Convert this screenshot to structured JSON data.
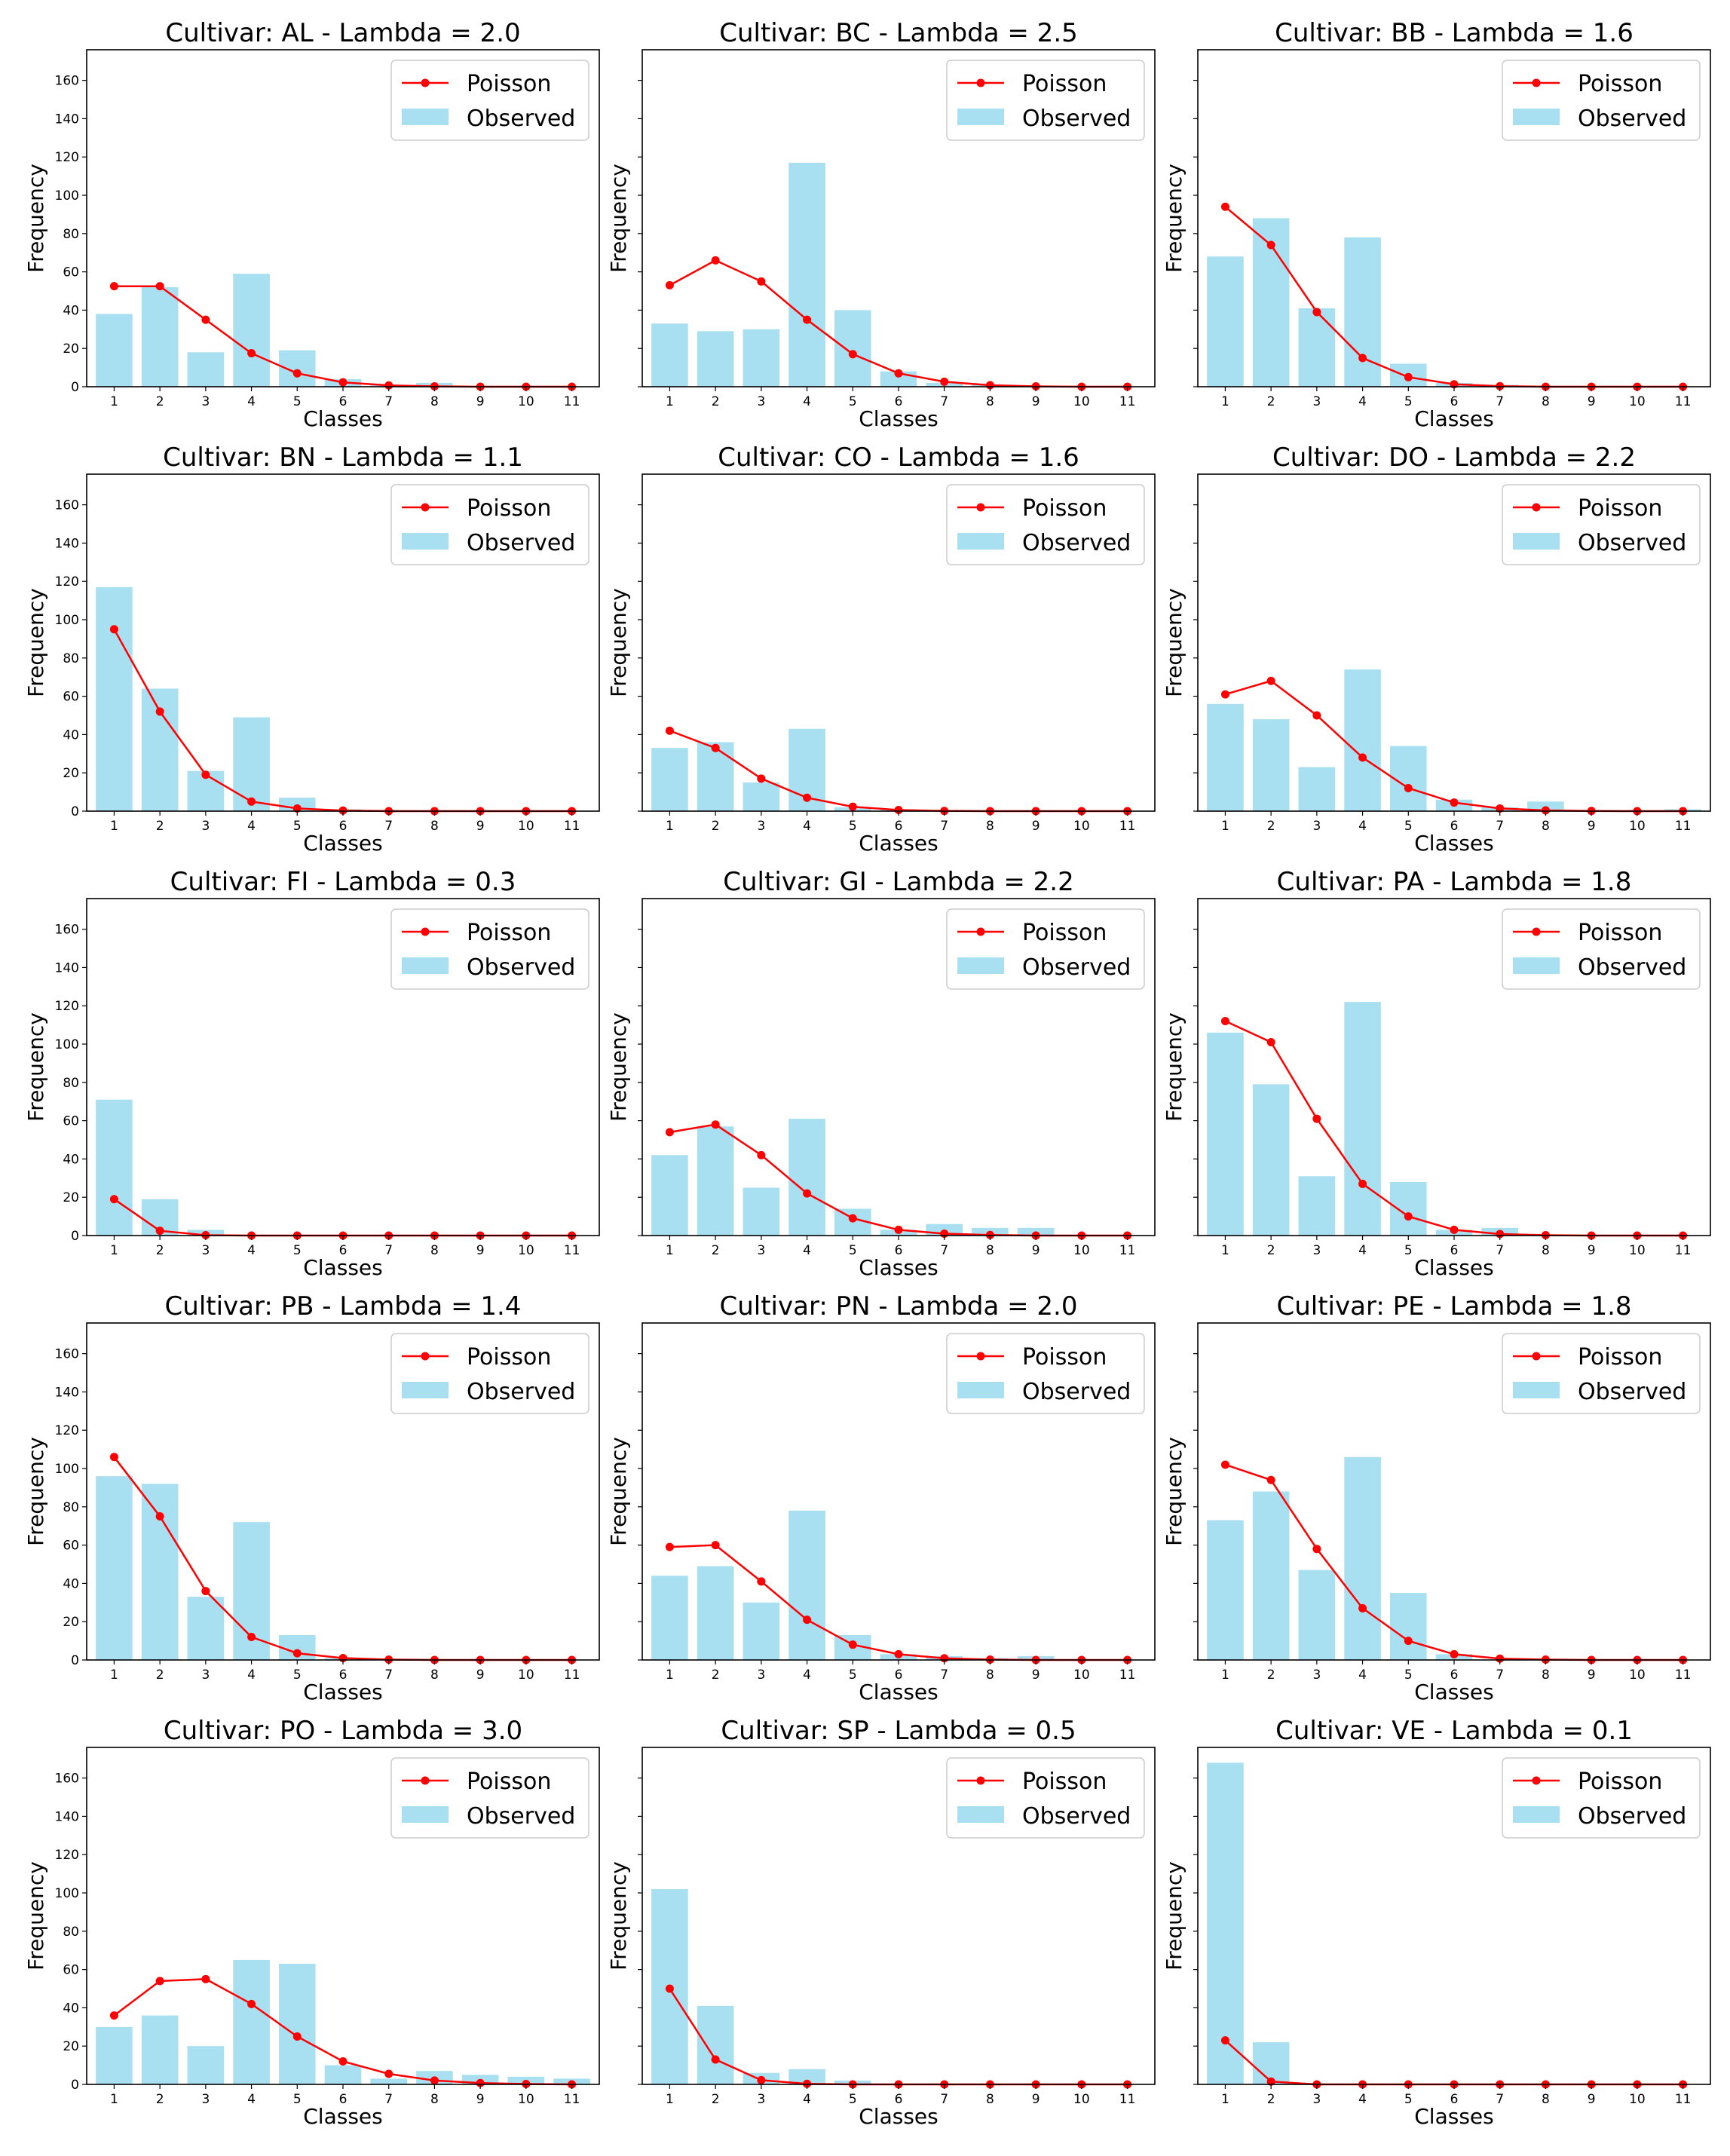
{
  "legend": {
    "line_label": "Poisson",
    "bar_label": "Observed"
  },
  "colors": {
    "observed": "#a8dff1",
    "poisson": "#ff0000"
  },
  "x_axis_label": "Classes",
  "y_axis_label": "Frequency",
  "chart_data": [
    {
      "type": "bar",
      "title": "Cultivar: AL  -  Lambda = 2.0",
      "xlabel": "Classes",
      "ylabel": "Frequency",
      "categories": [
        "1",
        "2",
        "3",
        "4",
        "5",
        "6",
        "7",
        "8",
        "9",
        "10",
        "11"
      ],
      "ylim": [
        0,
        176
      ],
      "yticks": [
        0,
        20,
        40,
        60,
        80,
        100,
        120,
        140,
        160
      ],
      "grid": false,
      "legend_position": "top-right",
      "series": [
        {
          "name": "Observed",
          "type": "bar",
          "values": [
            38,
            52,
            18,
            59,
            19,
            4,
            1,
            2,
            0,
            0,
            0
          ]
        },
        {
          "name": "Poisson",
          "type": "line",
          "values": [
            52.5,
            52.5,
            35,
            17.5,
            7,
            2.3,
            0.7,
            0.2,
            0,
            0,
            0
          ]
        }
      ]
    },
    {
      "type": "bar",
      "title": "Cultivar: BC  -  Lambda = 2.5",
      "xlabel": "Classes",
      "ylabel": "Frequency",
      "categories": [
        "1",
        "2",
        "3",
        "4",
        "5",
        "6",
        "7",
        "8",
        "9",
        "10",
        "11"
      ],
      "ylim": [
        0,
        176
      ],
      "yticks": [
        0,
        20,
        40,
        60,
        80,
        100,
        120,
        140,
        160
      ],
      "grid": false,
      "legend_position": "top-right",
      "series": [
        {
          "name": "Observed",
          "type": "bar",
          "values": [
            33,
            29,
            30,
            117,
            40,
            8,
            2,
            1,
            0,
            0,
            0
          ]
        },
        {
          "name": "Poisson",
          "type": "line",
          "values": [
            53,
            66,
            55,
            35,
            17,
            7,
            2.6,
            0.8,
            0.2,
            0,
            0
          ]
        }
      ]
    },
    {
      "type": "bar",
      "title": "Cultivar: BB  -  Lambda = 1.6",
      "xlabel": "Classes",
      "ylabel": "Frequency",
      "categories": [
        "1",
        "2",
        "3",
        "4",
        "5",
        "6",
        "7",
        "8",
        "9",
        "10",
        "11"
      ],
      "ylim": [
        0,
        176
      ],
      "yticks": [
        0,
        20,
        40,
        60,
        80,
        100,
        120,
        140,
        160
      ],
      "grid": false,
      "legend_position": "top-right",
      "series": [
        {
          "name": "Observed",
          "type": "bar",
          "values": [
            68,
            88,
            41,
            78,
            12,
            2,
            1,
            0,
            0,
            0,
            0
          ]
        },
        {
          "name": "Poisson",
          "type": "line",
          "values": [
            94,
            74,
            39,
            15,
            5,
            1.3,
            0.3,
            0,
            0,
            0,
            0
          ]
        }
      ]
    },
    {
      "type": "bar",
      "title": "Cultivar: BN  -  Lambda = 1.1",
      "xlabel": "Classes",
      "ylabel": "Frequency",
      "categories": [
        "1",
        "2",
        "3",
        "4",
        "5",
        "6",
        "7",
        "8",
        "9",
        "10",
        "11"
      ],
      "ylim": [
        0,
        176
      ],
      "yticks": [
        0,
        20,
        40,
        60,
        80,
        100,
        120,
        140,
        160
      ],
      "grid": false,
      "legend_position": "top-right",
      "series": [
        {
          "name": "Observed",
          "type": "bar",
          "values": [
            117,
            64,
            21,
            49,
            7,
            1,
            0,
            0,
            0,
            0,
            0
          ]
        },
        {
          "name": "Poisson",
          "type": "line",
          "values": [
            95,
            52,
            19,
            5,
            1.4,
            0.3,
            0,
            0,
            0,
            0,
            0
          ]
        }
      ]
    },
    {
      "type": "bar",
      "title": "Cultivar: CO  -  Lambda = 1.6",
      "xlabel": "Classes",
      "ylabel": "Frequency",
      "categories": [
        "1",
        "2",
        "3",
        "4",
        "5",
        "6",
        "7",
        "8",
        "9",
        "10",
        "11"
      ],
      "ylim": [
        0,
        176
      ],
      "yticks": [
        0,
        20,
        40,
        60,
        80,
        100,
        120,
        140,
        160
      ],
      "grid": false,
      "legend_position": "top-right",
      "series": [
        {
          "name": "Observed",
          "type": "bar",
          "values": [
            33,
            36,
            15,
            43,
            2,
            1,
            0,
            0,
            0,
            0,
            0
          ]
        },
        {
          "name": "Poisson",
          "type": "line",
          "values": [
            42,
            33,
            17,
            7,
            2.3,
            0.6,
            0.1,
            0,
            0,
            0,
            0
          ]
        }
      ]
    },
    {
      "type": "bar",
      "title": "Cultivar: DO  -  Lambda = 2.2",
      "xlabel": "Classes",
      "ylabel": "Frequency",
      "categories": [
        "1",
        "2",
        "3",
        "4",
        "5",
        "6",
        "7",
        "8",
        "9",
        "10",
        "11"
      ],
      "ylim": [
        0,
        176
      ],
      "yticks": [
        0,
        20,
        40,
        60,
        80,
        100,
        120,
        140,
        160
      ],
      "grid": false,
      "legend_position": "top-right",
      "series": [
        {
          "name": "Observed",
          "type": "bar",
          "values": [
            56,
            48,
            23,
            74,
            34,
            6,
            2,
            5,
            0,
            0,
            1
          ]
        },
        {
          "name": "Poisson",
          "type": "line",
          "values": [
            61,
            68,
            50,
            28,
            12,
            4.5,
            1.4,
            0.4,
            0.1,
            0,
            0
          ]
        }
      ]
    },
    {
      "type": "bar",
      "title": "Cultivar: FI  -  Lambda = 0.3",
      "xlabel": "Classes",
      "ylabel": "Frequency",
      "categories": [
        "1",
        "2",
        "3",
        "4",
        "5",
        "6",
        "7",
        "8",
        "9",
        "10",
        "11"
      ],
      "ylim": [
        0,
        176
      ],
      "yticks": [
        0,
        20,
        40,
        60,
        80,
        100,
        120,
        140,
        160
      ],
      "grid": false,
      "legend_position": "top-right",
      "series": [
        {
          "name": "Observed",
          "type": "bar",
          "values": [
            71,
            19,
            3,
            0,
            0,
            0,
            0,
            0,
            0,
            0,
            0
          ]
        },
        {
          "name": "Poisson",
          "type": "line",
          "values": [
            19,
            2.5,
            0.2,
            0,
            0,
            0,
            0,
            0,
            0,
            0,
            0
          ]
        }
      ]
    },
    {
      "type": "bar",
      "title": "Cultivar: GI  -  Lambda = 2.2",
      "xlabel": "Classes",
      "ylabel": "Frequency",
      "categories": [
        "1",
        "2",
        "3",
        "4",
        "5",
        "6",
        "7",
        "8",
        "9",
        "10",
        "11"
      ],
      "ylim": [
        0,
        176
      ],
      "yticks": [
        0,
        20,
        40,
        60,
        80,
        100,
        120,
        140,
        160
      ],
      "grid": false,
      "legend_position": "top-right",
      "series": [
        {
          "name": "Observed",
          "type": "bar",
          "values": [
            42,
            57,
            25,
            61,
            14,
            3,
            6,
            4,
            4,
            0,
            0
          ]
        },
        {
          "name": "Poisson",
          "type": "line",
          "values": [
            54,
            58,
            42,
            22,
            9,
            3,
            1,
            0.3,
            0,
            0,
            0
          ]
        }
      ]
    },
    {
      "type": "bar",
      "title": "Cultivar: PA  -  Lambda = 1.8",
      "xlabel": "Classes",
      "ylabel": "Frequency",
      "categories": [
        "1",
        "2",
        "3",
        "4",
        "5",
        "6",
        "7",
        "8",
        "9",
        "10",
        "11"
      ],
      "ylim": [
        0,
        176
      ],
      "yticks": [
        0,
        20,
        40,
        60,
        80,
        100,
        120,
        140,
        160
      ],
      "grid": false,
      "legend_position": "top-right",
      "series": [
        {
          "name": "Observed",
          "type": "bar",
          "values": [
            106,
            79,
            31,
            122,
            28,
            3,
            4,
            0,
            0,
            0,
            0
          ]
        },
        {
          "name": "Poisson",
          "type": "line",
          "values": [
            112,
            101,
            61,
            27,
            10,
            3,
            0.8,
            0.2,
            0,
            0,
            0
          ]
        }
      ]
    },
    {
      "type": "bar",
      "title": "Cultivar: PB  -  Lambda = 1.4",
      "xlabel": "Classes",
      "ylabel": "Frequency",
      "categories": [
        "1",
        "2",
        "3",
        "4",
        "5",
        "6",
        "7",
        "8",
        "9",
        "10",
        "11"
      ],
      "ylim": [
        0,
        176
      ],
      "yticks": [
        0,
        20,
        40,
        60,
        80,
        100,
        120,
        140,
        160
      ],
      "grid": false,
      "legend_position": "top-right",
      "series": [
        {
          "name": "Observed",
          "type": "bar",
          "values": [
            96,
            92,
            33,
            72,
            13,
            1,
            0,
            0,
            0,
            0,
            0
          ]
        },
        {
          "name": "Poisson",
          "type": "line",
          "values": [
            106,
            75,
            36,
            12,
            3.5,
            1,
            0.2,
            0,
            0,
            0,
            0
          ]
        }
      ]
    },
    {
      "type": "bar",
      "title": "Cultivar: PN  -  Lambda = 2.0",
      "xlabel": "Classes",
      "ylabel": "Frequency",
      "categories": [
        "1",
        "2",
        "3",
        "4",
        "5",
        "6",
        "7",
        "8",
        "9",
        "10",
        "11"
      ],
      "ylim": [
        0,
        176
      ],
      "yticks": [
        0,
        20,
        40,
        60,
        80,
        100,
        120,
        140,
        160
      ],
      "grid": false,
      "legend_position": "top-right",
      "series": [
        {
          "name": "Observed",
          "type": "bar",
          "values": [
            44,
            49,
            30,
            78,
            13,
            3,
            2,
            1,
            2,
            0,
            0
          ]
        },
        {
          "name": "Poisson",
          "type": "line",
          "values": [
            59,
            60,
            41,
            21,
            8,
            3,
            0.9,
            0.2,
            0,
            0,
            0
          ]
        }
      ]
    },
    {
      "type": "bar",
      "title": "Cultivar: PE  -  Lambda = 1.8",
      "xlabel": "Classes",
      "ylabel": "Frequency",
      "categories": [
        "1",
        "2",
        "3",
        "4",
        "5",
        "6",
        "7",
        "8",
        "9",
        "10",
        "11"
      ],
      "ylim": [
        0,
        176
      ],
      "yticks": [
        0,
        20,
        40,
        60,
        80,
        100,
        120,
        140,
        160
      ],
      "grid": false,
      "legend_position": "top-right",
      "series": [
        {
          "name": "Observed",
          "type": "bar",
          "values": [
            73,
            88,
            47,
            106,
            35,
            3,
            0,
            0,
            0,
            0,
            0
          ]
        },
        {
          "name": "Poisson",
          "type": "line",
          "values": [
            102,
            94,
            58,
            27,
            10,
            3,
            0.7,
            0.2,
            0,
            0,
            0
          ]
        }
      ]
    },
    {
      "type": "bar",
      "title": "Cultivar: PO  -  Lambda = 3.0",
      "xlabel": "Classes",
      "ylabel": "Frequency",
      "categories": [
        "1",
        "2",
        "3",
        "4",
        "5",
        "6",
        "7",
        "8",
        "9",
        "10",
        "11"
      ],
      "ylim": [
        0,
        176
      ],
      "yticks": [
        0,
        20,
        40,
        60,
        80,
        100,
        120,
        140,
        160
      ],
      "grid": false,
      "legend_position": "top-right",
      "series": [
        {
          "name": "Observed",
          "type": "bar",
          "values": [
            30,
            36,
            20,
            65,
            63,
            10,
            3,
            7,
            5,
            4,
            3
          ]
        },
        {
          "name": "Poisson",
          "type": "line",
          "values": [
            36,
            54,
            55,
            42,
            25,
            12,
            5.5,
            2,
            0.7,
            0.2,
            0
          ]
        }
      ]
    },
    {
      "type": "bar",
      "title": "Cultivar: SP  -  Lambda = 0.5",
      "xlabel": "Classes",
      "ylabel": "Frequency",
      "categories": [
        "1",
        "2",
        "3",
        "4",
        "5",
        "6",
        "7",
        "8",
        "9",
        "10",
        "11"
      ],
      "ylim": [
        0,
        176
      ],
      "yticks": [
        0,
        20,
        40,
        60,
        80,
        100,
        120,
        140,
        160
      ],
      "grid": false,
      "legend_position": "top-right",
      "series": [
        {
          "name": "Observed",
          "type": "bar",
          "values": [
            102,
            41,
            6,
            8,
            2,
            0,
            0,
            0,
            0,
            0,
            0
          ]
        },
        {
          "name": "Poisson",
          "type": "line",
          "values": [
            50,
            13,
            2.2,
            0.3,
            0,
            0,
            0,
            0,
            0,
            0,
            0
          ]
        }
      ]
    },
    {
      "type": "bar",
      "title": "Cultivar: VE  -  Lambda = 0.1",
      "xlabel": "Classes",
      "ylabel": "Frequency",
      "categories": [
        "1",
        "2",
        "3",
        "4",
        "5",
        "6",
        "7",
        "8",
        "9",
        "10",
        "11"
      ],
      "ylim": [
        0,
        176
      ],
      "yticks": [
        0,
        20,
        40,
        60,
        80,
        100,
        120,
        140,
        160
      ],
      "grid": false,
      "legend_position": "top-right",
      "series": [
        {
          "name": "Observed",
          "type": "bar",
          "values": [
            168,
            22,
            0,
            0,
            0,
            0,
            0,
            0,
            0,
            0,
            0
          ]
        },
        {
          "name": "Poisson",
          "type": "line",
          "values": [
            23,
            1.5,
            0,
            0,
            0,
            0,
            0,
            0,
            0,
            0,
            0
          ]
        }
      ]
    }
  ]
}
